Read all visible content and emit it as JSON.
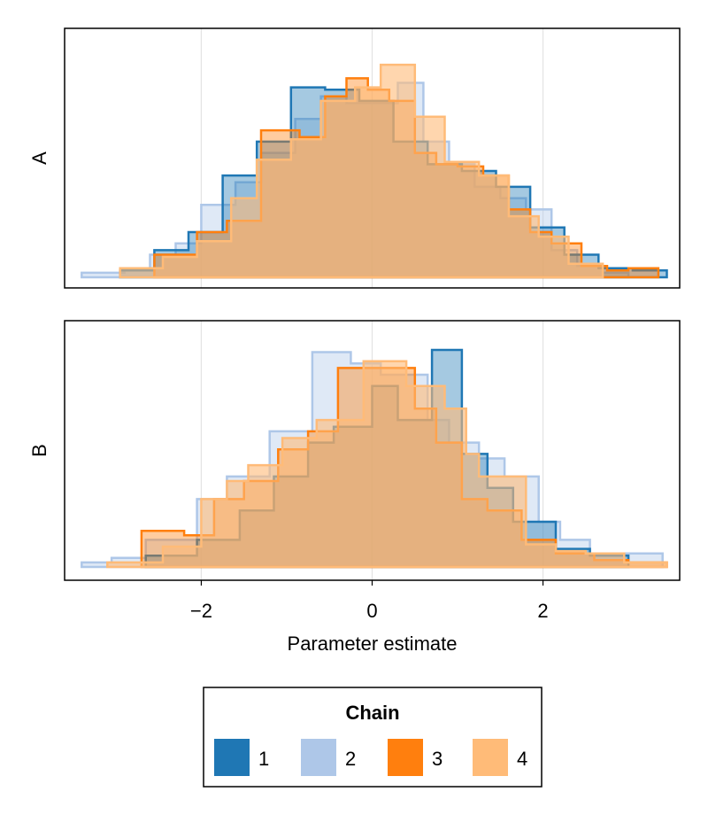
{
  "chart_data": {
    "type": "histogram",
    "xlabel": "Parameter estimate",
    "x_ticks": [
      -2,
      0,
      2
    ],
    "x_tick_labels": [
      "−2",
      "0",
      "2"
    ],
    "xlim": [
      -3.6,
      3.6
    ],
    "grid": {
      "vertical": true,
      "horizontal": false
    },
    "y_ticks_shown": false,
    "legend": {
      "title": "Chain",
      "placement": "bottom-center",
      "orientation": "horizontal",
      "entries": [
        {
          "label": "1",
          "color": "#1f77b4",
          "opacity": 0.4
        },
        {
          "label": "2",
          "color": "#aec7e8",
          "opacity": 0.4
        },
        {
          "label": "3",
          "color": "#ff7f0e",
          "opacity": 0.4
        },
        {
          "label": "4",
          "color": "#ffbb78",
          "opacity": 0.6
        }
      ]
    },
    "panels": [
      {
        "ylabel": "A",
        "ylim": [
          0,
          1.05
        ],
        "series": [
          {
            "name": "1",
            "edges": [
              -2.95,
              -2.55,
              -2.15,
              -1.75,
              -1.35,
              -0.95,
              -0.55,
              -0.15,
              0.25,
              0.65,
              1.05,
              1.45,
              1.85,
              2.25,
              2.65,
              3.05,
              3.45
            ],
            "heights": [
              0.03,
              0.12,
              0.2,
              0.45,
              0.6,
              0.84,
              0.83,
              0.78,
              0.6,
              0.5,
              0.47,
              0.4,
              0.22,
              0.1,
              0.04,
              0.03
            ]
          },
          {
            "name": "2",
            "edges": [
              -3.4,
              -2.9,
              -2.6,
              -2.3,
              -2.0,
              -1.6,
              -1.3,
              -0.9,
              -0.6,
              -0.3,
              0.0,
              0.3,
              0.6,
              0.9,
              1.2,
              1.5,
              1.8,
              2.1,
              2.4,
              2.7,
              3.0
            ],
            "heights": [
              0.02,
              0.03,
              0.1,
              0.15,
              0.32,
              0.42,
              0.55,
              0.7,
              0.8,
              0.77,
              0.77,
              0.86,
              0.6,
              0.5,
              0.4,
              0.35,
              0.3,
              0.12,
              0.05,
              0.02
            ]
          },
          {
            "name": "3",
            "edges": [
              -2.55,
              -2.05,
              -1.7,
              -1.3,
              -0.85,
              -0.55,
              -0.3,
              -0.05,
              0.2,
              0.5,
              0.75,
              1.0,
              1.3,
              1.6,
              1.85,
              2.1,
              2.45,
              2.75,
              3.0,
              3.35
            ],
            "heights": [
              0.1,
              0.2,
              0.25,
              0.65,
              0.62,
              0.8,
              0.88,
              0.83,
              0.78,
              0.55,
              0.5,
              0.49,
              0.45,
              0.3,
              0.2,
              0.15,
              0.05,
              0.03,
              0.04
            ]
          },
          {
            "name": "4",
            "edges": [
              -2.95,
              -2.45,
              -2.05,
              -1.65,
              -1.35,
              -0.95,
              -0.6,
              -0.2,
              0.1,
              0.5,
              0.85,
              1.25,
              1.6,
              1.95,
              2.3,
              2.7
            ],
            "heights": [
              0.04,
              0.09,
              0.16,
              0.35,
              0.52,
              0.61,
              0.78,
              0.84,
              0.94,
              0.71,
              0.51,
              0.45,
              0.27,
              0.18,
              0.06
            ]
          }
        ]
      },
      {
        "ylabel": "B",
        "ylim": [
          0,
          1.05
        ],
        "series": [
          {
            "name": "1",
            "edges": [
              -2.65,
              -2.05,
              -1.55,
              -1.15,
              -0.75,
              -0.45,
              0.0,
              0.3,
              0.7,
              1.05,
              1.35,
              1.65,
              2.15,
              2.55,
              3.0
            ],
            "heights": [
              0.05,
              0.12,
              0.25,
              0.4,
              0.55,
              0.62,
              0.8,
              0.65,
              0.96,
              0.5,
              0.35,
              0.2,
              0.08,
              0.05
            ]
          },
          {
            "name": "2",
            "edges": [
              -3.4,
              -3.05,
              -2.65,
              -2.05,
              -1.7,
              -1.2,
              -0.7,
              -0.25,
              0.1,
              0.65,
              0.9,
              1.25,
              1.55,
              1.95,
              2.2,
              2.55,
              2.9,
              3.4
            ],
            "heights": [
              0.02,
              0.04,
              0.12,
              0.3,
              0.4,
              0.6,
              0.95,
              0.9,
              0.85,
              0.65,
              0.55,
              0.48,
              0.4,
              0.2,
              0.12,
              0.05,
              0.06
            ]
          },
          {
            "name": "3",
            "edges": [
              -2.7,
              -2.2,
              -1.85,
              -1.5,
              -1.1,
              -0.75,
              -0.4,
              -0.1,
              0.25,
              0.5,
              0.75,
              1.05,
              1.35,
              1.75,
              2.15,
              2.6,
              3.0,
              3.45
            ],
            "heights": [
              0.16,
              0.14,
              0.3,
              0.38,
              0.52,
              0.6,
              0.88,
              0.88,
              0.88,
              0.7,
              0.55,
              0.3,
              0.25,
              0.12,
              0.06,
              0.03,
              0.02
            ]
          },
          {
            "name": "4",
            "edges": [
              -3.1,
              -2.45,
              -2.0,
              -1.7,
              -1.45,
              -1.05,
              -0.65,
              -0.1,
              0.4,
              0.85,
              1.1,
              1.25,
              1.8,
              2.15,
              2.5,
              2.95,
              3.45
            ],
            "heights": [
              0.02,
              0.09,
              0.3,
              0.38,
              0.45,
              0.57,
              0.65,
              0.91,
              0.8,
              0.7,
              0.5,
              0.4,
              0.1,
              0.07,
              0.06,
              0.02
            ]
          }
        ]
      }
    ]
  }
}
